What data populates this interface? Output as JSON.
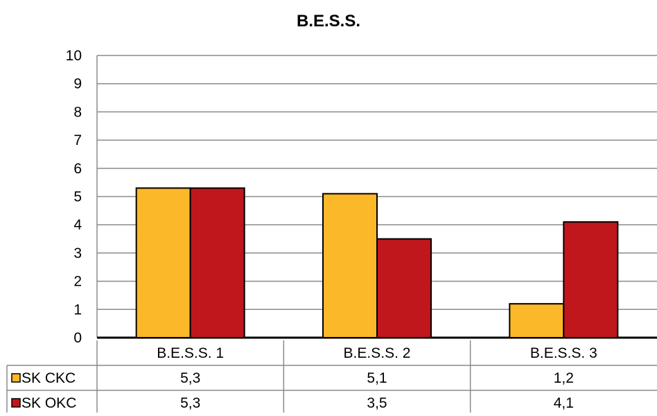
{
  "chart_data": {
    "type": "bar",
    "title": "B.E.S.S.",
    "categories": [
      "B.E.S.S. 1",
      "B.E.S.S. 2",
      "B.E.S.S. 3"
    ],
    "series": [
      {
        "name": "SK CKC",
        "color": "#FBB829",
        "values": [
          5.3,
          5.1,
          1.2
        ],
        "labels": [
          "5,3",
          "5,1",
          "1,2"
        ]
      },
      {
        "name": "SK OKC",
        "color": "#C0171C",
        "values": [
          5.3,
          3.5,
          4.1
        ],
        "labels": [
          "5,3",
          "3,5",
          "4,1"
        ]
      }
    ],
    "ylim": [
      0,
      10
    ],
    "yticks": [
      "0",
      "1",
      "2",
      "3",
      "4",
      "5",
      "6",
      "7",
      "8",
      "9",
      "10"
    ],
    "grid": true,
    "legend": "data table",
    "xlabel": "",
    "ylabel": ""
  }
}
